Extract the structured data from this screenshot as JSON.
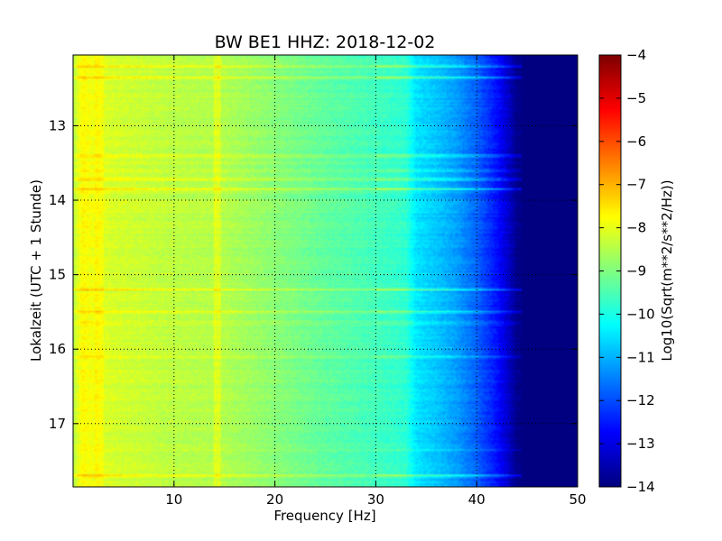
{
  "chart_data": {
    "type": "heatmap",
    "title": "BW BE1 HHZ: 2018-12-02",
    "xlabel": "Frequency [Hz]",
    "ylabel": "Lokalzeit (UTC + 1 Stunde)",
    "xlim": [
      0,
      50
    ],
    "ylim": [
      12.05,
      17.85
    ],
    "y_inverted": true,
    "x_ticks": [
      10,
      20,
      30,
      40,
      50
    ],
    "x_tick_labels": [
      "10",
      "20",
      "30",
      "40",
      "50"
    ],
    "y_ticks": [
      13,
      14,
      15,
      16,
      17
    ],
    "y_tick_labels": [
      "13",
      "14",
      "15",
      "16",
      "17"
    ],
    "grid": true,
    "colormap": "jet",
    "colorbar": {
      "label": "Log10(Sqrt(m**2/s**2/Hz))",
      "range": [
        -14,
        -4
      ],
      "ticks": [
        -4,
        -5,
        -6,
        -7,
        -8,
        -9,
        -10,
        -11,
        -12,
        -13,
        -14
      ],
      "tick_labels": [
        "−4",
        "−5",
        "−6",
        "−7",
        "−8",
        "−9",
        "−10",
        "−11",
        "−12",
        "−13",
        "−14"
      ]
    },
    "psd_profile": {
      "frequency_hz": [
        0,
        0.5,
        1,
        2,
        3,
        5,
        10,
        15,
        20,
        25,
        30,
        33,
        34,
        36,
        38,
        40,
        42,
        43,
        44,
        45,
        50
      ],
      "log10_psd": [
        -8.5,
        -8.0,
        -7.7,
        -7.9,
        -8.1,
        -8.2,
        -8.4,
        -8.5,
        -8.9,
        -9.3,
        -9.6,
        -9.8,
        -10.5,
        -10.8,
        -11.2,
        -11.8,
        -12.6,
        -13.2,
        -13.9,
        -14.0,
        -14.0
      ]
    },
    "bright_bands": [
      {
        "time": 12.2,
        "strength": 1.0
      },
      {
        "time": 12.35,
        "strength": 1.0
      },
      {
        "time": 13.4,
        "strength": 0.9
      },
      {
        "time": 13.6,
        "strength": 0.7
      },
      {
        "time": 13.72,
        "strength": 0.8
      },
      {
        "time": 13.85,
        "strength": 1.0
      },
      {
        "time": 15.2,
        "strength": 1.0
      },
      {
        "time": 15.5,
        "strength": 0.8
      },
      {
        "time": 15.65,
        "strength": 0.5
      },
      {
        "time": 16.1,
        "strength": 0.6
      },
      {
        "time": 17.35,
        "strength": 0.4
      },
      {
        "time": 17.7,
        "strength": 1.0
      }
    ]
  }
}
